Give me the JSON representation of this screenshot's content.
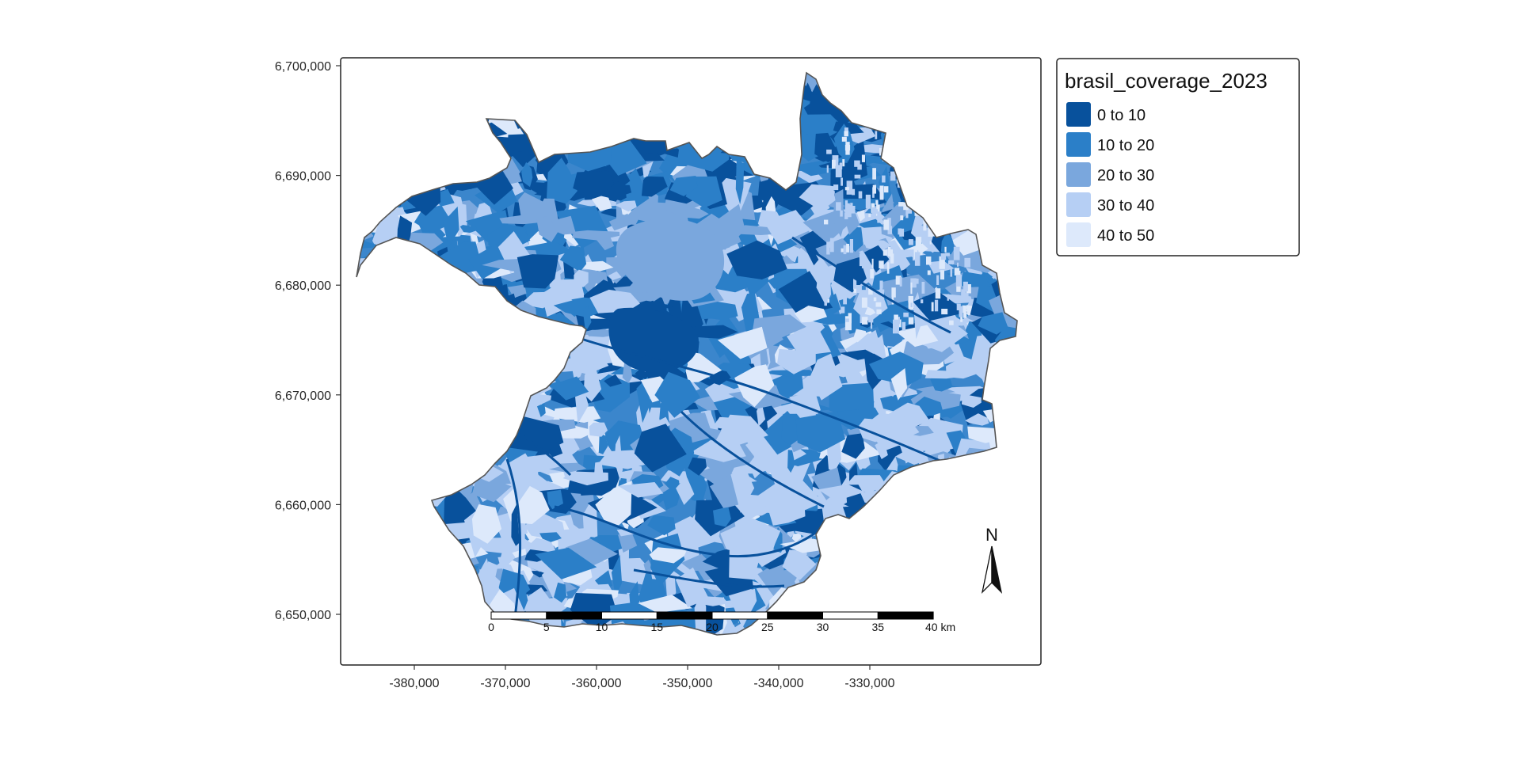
{
  "map": {
    "x_range": [
      -388000,
      -324000
    ],
    "y_range": [
      6644500,
      6701000
    ],
    "x_ticks": [
      -380000,
      -370000,
      -360000,
      -350000,
      -340000,
      -330000
    ],
    "x_tick_labels": [
      "-380,000",
      "-370,000",
      "-360,000",
      "-350,000",
      "-340,000",
      "-330,000"
    ],
    "y_ticks": [
      6700000,
      6690000,
      6680000,
      6670000,
      6660000,
      6650000
    ],
    "y_tick_labels": [
      "6,700,000",
      "6,690,000",
      "6,680,000",
      "6,670,000",
      "6,660,000",
      "6,650,000"
    ],
    "grid": false,
    "boundary_color": "#555555"
  },
  "legend": {
    "title": "brasil_coverage_2023",
    "position": "top-right, outside map frame",
    "classes": [
      {
        "label": "0 to 10",
        "color": "#08519c"
      },
      {
        "label": "10 to 20",
        "color": "#2b7fc8"
      },
      {
        "label": "20 to 30",
        "color": "#7aa7dd"
      },
      {
        "label": "30 to 40",
        "color": "#b6cff4"
      },
      {
        "label": "40 to 50",
        "color": "#dde9fb"
      }
    ]
  },
  "scale_bar": {
    "labels": [
      "0",
      "5",
      "10",
      "15",
      "20",
      "25",
      "30",
      "35",
      "40 km"
    ],
    "segments": 8,
    "position": "bottom-center"
  },
  "north_arrow": {
    "label": "N",
    "icon": "north-arrow-icon",
    "position": "bottom-right"
  }
}
